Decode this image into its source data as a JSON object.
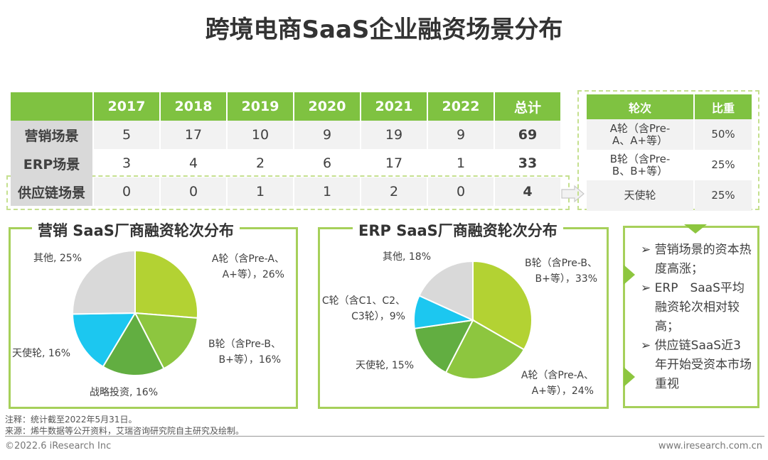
{
  "title": "跨境电商SaaS企业融资场景分布",
  "scene_table": {
    "headers": [
      "",
      "2017",
      "2018",
      "2019",
      "2020",
      "2021",
      "2022",
      "总计"
    ],
    "rows": [
      {
        "label": "营销场景",
        "values": [
          "5",
          "17",
          "10",
          "9",
          "19",
          "9"
        ],
        "total": "69"
      },
      {
        "label": "ERP场景",
        "values": [
          "3",
          "4",
          "2",
          "6",
          "17",
          "1"
        ],
        "total": "33"
      },
      {
        "label": "供应链场景",
        "values": [
          "0",
          "0",
          "1",
          "1",
          "2",
          "0"
        ],
        "total": "4"
      }
    ]
  },
  "round_table": {
    "headers": [
      "轮次",
      "比重"
    ],
    "rows": [
      {
        "round": "A轮（含Pre-A、A+等）",
        "share": "50%"
      },
      {
        "round": "B轮（含Pre-B、B+等）",
        "share": "25%"
      },
      {
        "round": "天使轮",
        "share": "25%"
      }
    ]
  },
  "chart_data": [
    {
      "type": "pie",
      "title": "营销 SaaS厂商融资轮次分布",
      "slices": [
        {
          "label": "A轮（含Pre-A、A+等），26%",
          "value": 26,
          "color": "#b3d233"
        },
        {
          "label": "B轮（含Pre-B、B+等），16%",
          "value": 16,
          "color": "#8dc63f"
        },
        {
          "label": "战略投资, 16%",
          "value": 16,
          "color": "#62ae41"
        },
        {
          "label": "天使轮, 16%",
          "value": 16,
          "color": "#1cc7f0"
        },
        {
          "label": "其他, 25%",
          "value": 25,
          "color": "#d9d9d9"
        }
      ]
    },
    {
      "type": "pie",
      "title": "ERP SaaS厂商融资轮次分布",
      "slices": [
        {
          "label": "B轮（含Pre-B、B+等），33%",
          "value": 33,
          "color": "#b3d233"
        },
        {
          "label": "A轮（含Pre-A、A+等），24%",
          "value": 24,
          "color": "#8dc63f"
        },
        {
          "label": "天使轮, 15%",
          "value": 15,
          "color": "#62ae41"
        },
        {
          "label": "C轮（含C1、C2、C3轮），9%",
          "value": 9,
          "color": "#1cc7f0"
        },
        {
          "label": "其他, 18%",
          "value": 18,
          "color": "#d9d9d9"
        }
      ]
    }
  ],
  "pie_labels": {
    "p1": [
      "A轮（含Pre-A、",
      "A+等），26%",
      "B轮（含Pre-B、",
      "B+等），16%",
      "战略投资, 16%",
      "天使轮, 16%",
      "其他, 25%"
    ],
    "p2": [
      "B轮（含Pre-B、",
      "B+等），33%",
      "A轮（含Pre-A、",
      "A+等），24%",
      "天使轮, 15%",
      "C轮（含C1、C2、",
      "C3轮），9%",
      "其他, 18%"
    ]
  },
  "notes": [
    "营销场景的资本热度高涨；",
    "ERP　SaaS平均融资轮次相对较高；",
    "供应链SaaS近3年开始受资本市场重视"
  ],
  "footer": {
    "note": "注释：统计截至2022年5月31日。",
    "source": "来源：烯牛数据等公开资料，艾瑞咨询研究院自主研究及绘制。",
    "copyright": "©2022.6 iResearch Inc",
    "website": "www.iresearch.com.cn"
  },
  "colors": {
    "accent": "#7fc241",
    "panel_border": "#a6d05a"
  }
}
